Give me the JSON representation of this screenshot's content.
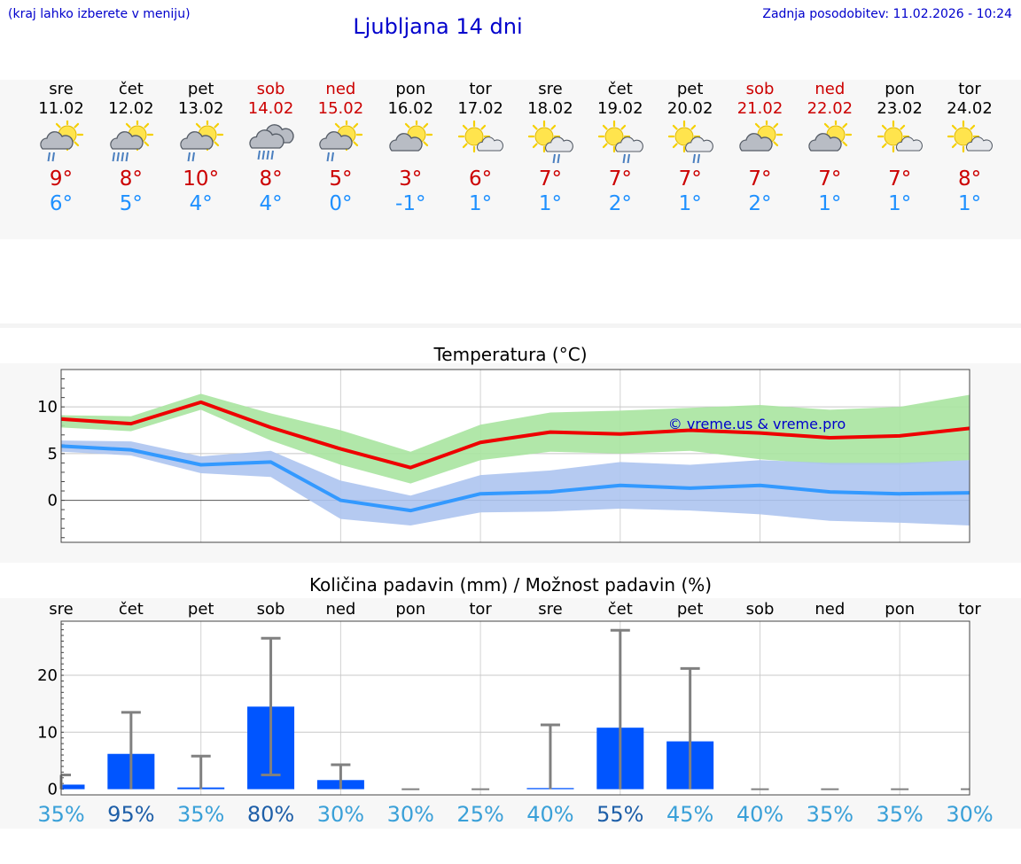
{
  "header": {
    "hint": "(kraj lahko izberete v meniju)",
    "title": "Ljubljana 14 dni",
    "updated": "Zadnja posodobitev: 11.02.2026 - 10:24"
  },
  "colors": {
    "weekday": "#000000",
    "weekend": "#cc0000",
    "tmax": "#cc0000",
    "tmin": "#1e90ff",
    "tmax_line": "#ee0000",
    "tmin_line": "#3399ff",
    "tmax_band": "#a8e4a0",
    "tmin_band": "#adc4f0",
    "precip_bar": "#0055ff",
    "watermark": "#0000cc"
  },
  "days": [
    {
      "name": "sre",
      "date": "11.02",
      "weekend": false,
      "icon": "partly-sunny-rain-icon",
      "tmax": "9°",
      "tmin": "6°"
    },
    {
      "name": "čet",
      "date": "12.02",
      "weekend": false,
      "icon": "partly-sunny-heavy-rain-icon",
      "tmax": "8°",
      "tmin": "5°"
    },
    {
      "name": "pet",
      "date": "13.02",
      "weekend": false,
      "icon": "partly-sunny-rain-icon",
      "tmax": "10°",
      "tmin": "4°"
    },
    {
      "name": "sob",
      "date": "14.02",
      "weekend": true,
      "icon": "cloudy-rain-icon",
      "tmax": "8°",
      "tmin": "4°"
    },
    {
      "name": "ned",
      "date": "15.02",
      "weekend": true,
      "icon": "partly-sunny-rain-icon",
      "tmax": "5°",
      "tmin": "0°"
    },
    {
      "name": "pon",
      "date": "16.02",
      "weekend": false,
      "icon": "partly-sunny-cloud-icon",
      "tmax": "3°",
      "tmin": "-1°"
    },
    {
      "name": "tor",
      "date": "17.02",
      "weekend": false,
      "icon": "mostly-sunny-icon",
      "tmax": "6°",
      "tmin": "1°"
    },
    {
      "name": "sre",
      "date": "18.02",
      "weekend": false,
      "icon": "sunny-light-rain-icon",
      "tmax": "7°",
      "tmin": "1°"
    },
    {
      "name": "čet",
      "date": "19.02",
      "weekend": false,
      "icon": "sunny-light-rain-icon",
      "tmax": "7°",
      "tmin": "2°"
    },
    {
      "name": "pet",
      "date": "20.02",
      "weekend": false,
      "icon": "sunny-light-rain-icon",
      "tmax": "7°",
      "tmin": "1°"
    },
    {
      "name": "sob",
      "date": "21.02",
      "weekend": true,
      "icon": "partly-sunny-cloud-icon",
      "tmax": "7°",
      "tmin": "2°"
    },
    {
      "name": "ned",
      "date": "22.02",
      "weekend": true,
      "icon": "partly-sunny-cloud-icon",
      "tmax": "7°",
      "tmin": "1°"
    },
    {
      "name": "pon",
      "date": "23.02",
      "weekend": false,
      "icon": "mostly-sunny-icon",
      "tmax": "7°",
      "tmin": "1°"
    },
    {
      "name": "tor",
      "date": "24.02",
      "weekend": false,
      "icon": "mostly-sunny-icon",
      "tmax": "8°",
      "tmin": "1°"
    }
  ],
  "chart_data": [
    {
      "type": "line",
      "title": "Temperatura (°C)",
      "x": [
        "11.02",
        "12.02",
        "13.02",
        "14.02",
        "15.02",
        "16.02",
        "17.02",
        "18.02",
        "19.02",
        "20.02",
        "21.02",
        "22.02",
        "23.02",
        "24.02"
      ],
      "ylim": [
        -4.5,
        14
      ],
      "yticks": [
        0,
        5,
        10
      ],
      "grid": true,
      "watermark": "© vreme.us & vreme.pro",
      "series": [
        {
          "values": [
            8.7,
            8.2,
            10.5,
            7.8,
            5.5,
            3.5,
            6.2,
            7.3,
            7.1,
            7.5,
            7.2,
            6.7,
            6.9,
            7.7
          ],
          "band_low": [
            7.8,
            7.4,
            9.7,
            6.4,
            3.8,
            1.8,
            4.3,
            5.2,
            5.0,
            5.3,
            4.4,
            3.8,
            3.8,
            4.3
          ],
          "band_high": [
            9.1,
            9.0,
            11.4,
            9.3,
            7.5,
            5.2,
            8.1,
            9.4,
            9.6,
            9.9,
            10.2,
            9.7,
            10.0,
            11.3
          ]
        },
        {
          "values": [
            5.8,
            5.4,
            3.8,
            4.1,
            0.0,
            -1.1,
            0.7,
            0.9,
            1.6,
            1.3,
            1.6,
            0.9,
            0.7,
            0.8
          ],
          "band_low": [
            5.2,
            4.8,
            2.9,
            2.5,
            -2.0,
            -2.7,
            -1.3,
            -1.2,
            -0.9,
            -1.1,
            -1.5,
            -2.2,
            -2.4,
            -2.7
          ],
          "band_high": [
            6.4,
            6.3,
            4.7,
            5.3,
            2.1,
            0.5,
            2.7,
            3.2,
            4.1,
            3.8,
            4.3,
            4.0,
            4.0,
            4.3
          ]
        }
      ]
    },
    {
      "type": "bar",
      "title": "Količina padavin (mm) / Možnost padavin (%)",
      "categories": [
        "sre",
        "čet",
        "pet",
        "sob",
        "ned",
        "pon",
        "tor",
        "sre",
        "čet",
        "pet",
        "sob",
        "ned",
        "pon",
        "tor"
      ],
      "ylim": [
        -1,
        29.5
      ],
      "yticks": [
        0,
        10,
        20
      ],
      "grid": true,
      "series": [
        {
          "values": [
            0.8,
            6.2,
            0.3,
            14.5,
            1.6,
            0.0,
            0.0,
            0.2,
            10.8,
            8.4,
            0.0,
            0.0,
            0.0,
            0.0
          ],
          "error_low": [
            0.0,
            0.0,
            0.0,
            2.5,
            0.0,
            0.0,
            0.0,
            0.0,
            0.0,
            0.0,
            0.0,
            0.0,
            0.0,
            0.0
          ],
          "error_high": [
            2.5,
            13.5,
            5.8,
            26.5,
            4.3,
            0.0,
            0.0,
            11.3,
            27.9,
            21.2,
            0.0,
            0.0,
            0.0,
            0.0
          ]
        }
      ],
      "probability": [
        "35%",
        "95%",
        "35%",
        "80%",
        "30%",
        "30%",
        "25%",
        "40%",
        "55%",
        "45%",
        "40%",
        "35%",
        "35%",
        "30%"
      ],
      "probability_strong": [
        false,
        true,
        false,
        true,
        false,
        false,
        false,
        false,
        true,
        false,
        false,
        false,
        false,
        false
      ]
    }
  ]
}
